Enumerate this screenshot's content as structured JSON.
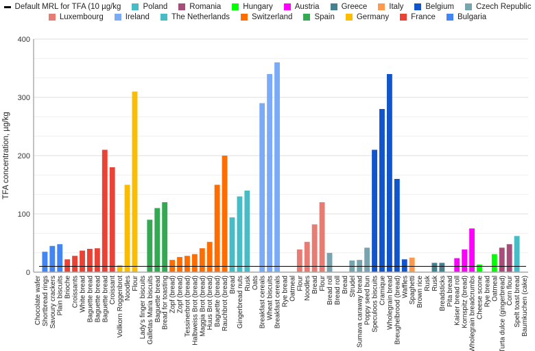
{
  "chart_data": {
    "type": "bar",
    "title": "",
    "xlabel": "",
    "ylabel": "TFA concentration, µg/kg",
    "ylim": [
      0,
      400
    ],
    "yticks": [
      0,
      100,
      200,
      300,
      400
    ],
    "grid": true,
    "legend_position": "top",
    "reference_line": {
      "name": "Default MRL for TFA (10 µg/kg",
      "value": 10,
      "color": "#000000"
    },
    "legend": [
      {
        "name": "Poland",
        "color": "#46BDC6"
      },
      {
        "name": "Romania",
        "color": "#A64D79"
      },
      {
        "name": "Hungary",
        "color": "#00FF00"
      },
      {
        "name": "Austria",
        "color": "#FF00FF"
      },
      {
        "name": "Greece",
        "color": "#45818E"
      },
      {
        "name": "Italy",
        "color": "#FF9A4D"
      },
      {
        "name": "Belgium",
        "color": "#1155CC"
      },
      {
        "name": "Czech Republic",
        "color": "#76A5AF"
      },
      {
        "name": "Luxembourg",
        "color": "#E67C73"
      },
      {
        "name": "Ireland",
        "color": "#7BAAF7"
      },
      {
        "name": "The Netherlands",
        "color": "#46BDC6"
      },
      {
        "name": "Switzerland",
        "color": "#FF6D01"
      },
      {
        "name": "Spain",
        "color": "#34A853"
      },
      {
        "name": "Germany",
        "color": "#FBBC04"
      },
      {
        "name": "France",
        "color": "#EA4335"
      },
      {
        "name": "Bulgaria",
        "color": "#4285F4"
      }
    ],
    "categories": [
      "Chocolate wafer",
      "Shortbread rings",
      "Savoury crackers",
      "Plain biscuits",
      "Brioche",
      "Croissants",
      "White bread",
      "Baguette bread",
      "Baguette bread",
      "Baguette bread",
      "Croissant",
      "Vollkorn Roggenbrot",
      "Noodles",
      "Flour",
      "Lady's finger biscuits",
      "Galletas Maria biscuits",
      "Baguette bread",
      "Bread for toasting",
      "Zopf (bread)",
      "Zopf (bread)",
      "Tessinerbrot (bread)",
      "Halbweiss Brot (bread)",
      "Maggia Brot (bread)",
      "Huus Brot (bread)",
      "Baguette (bread)",
      "Rauchbrot (bread)",
      "Bread",
      "Gingerbread nuts",
      "Rusk",
      "Oats",
      "Breakfast cereals",
      "Wheat biscuits",
      "Breakfast cereals",
      "Rye bread",
      "Oatmeal",
      "Flour",
      "Noodles",
      "Bread",
      "Flour",
      "Bread roll",
      "Bread roll",
      "Bread",
      "Strudel",
      "Sumava caraway bread",
      "Poppy seed bun",
      "Speculoos biscuits",
      "Cramique",
      "Wholegrain bread",
      "Breughelbrood (bread)",
      "Waffles",
      "Spaghetti",
      "Brown rice",
      "Rusk",
      "Rusk",
      "Breadsticks",
      "Pita bread",
      "Kaiser bread roll",
      "Kornspitz (bread)",
      "Wholegrain breadcrumbs",
      "Cheese scone",
      "Rye bread",
      "Oatmeal",
      "Turta dulce (gingerbread)",
      "Corn flour",
      "Spelt toast bread",
      "Baumkuchen (cake)"
    ],
    "series_by_bar": [
      "Bulgaria",
      "Bulgaria",
      "Bulgaria",
      "Bulgaria",
      "France",
      "France",
      "France",
      "France",
      "France",
      "France",
      "France",
      "Germany",
      "Germany",
      "Germany",
      "Spain",
      "Spain",
      "Spain",
      "Spain",
      "Switzerland",
      "Switzerland",
      "Switzerland",
      "Switzerland",
      "Switzerland",
      "Switzerland",
      "Switzerland",
      "Switzerland",
      "The Netherlands",
      "The Netherlands",
      "The Netherlands",
      "The Netherlands",
      "Ireland",
      "Ireland",
      "Ireland",
      "Ireland",
      "Ireland",
      "Luxembourg",
      "Luxembourg",
      "Luxembourg",
      "Luxembourg",
      "Czech Republic",
      "Czech Republic",
      "Czech Republic",
      "Czech Republic",
      "Czech Republic",
      "Czech Republic",
      "Belgium",
      "Belgium",
      "Belgium",
      "Belgium",
      "Belgium",
      "Italy",
      "Greece",
      "Greece",
      "Greece",
      "Greece",
      "Greece",
      "Austria",
      "Austria",
      "Austria",
      "Hungary",
      "Hungary",
      "Hungary",
      "Romania",
      "Romania",
      "Poland",
      "Poland"
    ],
    "values": [
      0,
      35,
      45,
      48,
      22,
      28,
      37,
      40,
      41,
      210,
      180,
      12,
      150,
      310,
      0,
      90,
      110,
      120,
      21,
      26,
      28,
      31,
      41,
      52,
      150,
      200,
      94,
      130,
      140,
      0,
      290,
      340,
      360,
      0,
      0,
      39,
      52,
      82,
      120,
      33,
      0,
      0,
      20,
      21,
      42,
      210,
      280,
      340,
      160,
      22,
      25,
      0,
      0,
      16,
      16,
      0,
      24,
      39,
      75,
      13,
      0,
      31,
      42,
      48,
      62,
      0
    ]
  }
}
